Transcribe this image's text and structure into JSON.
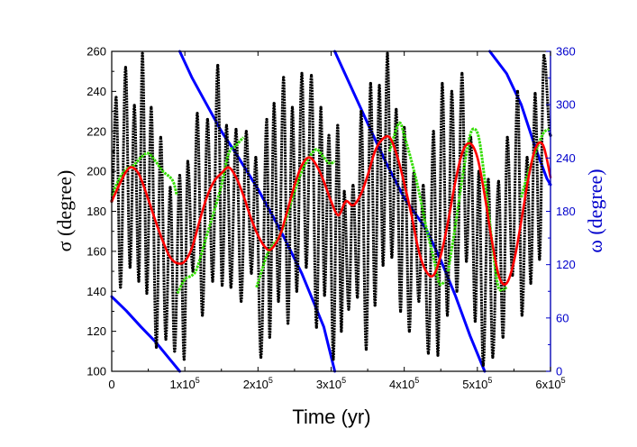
{
  "chart_data": {
    "type": "line",
    "title": "",
    "xlabel": "Time (yr)",
    "ylabel_left": "σ (degree)",
    "ylabel_right": "ω (degree)",
    "xlim": [
      0,
      600000
    ],
    "ylim_left": [
      100,
      260
    ],
    "ylim_right": [
      0,
      360
    ],
    "x_ticks": [
      {
        "value": 0,
        "mantissa": "0",
        "exponent": ""
      },
      {
        "value": 100000,
        "mantissa": "1x10",
        "exponent": "5"
      },
      {
        "value": 200000,
        "mantissa": "2x10",
        "exponent": "5"
      },
      {
        "value": 300000,
        "mantissa": "3x10",
        "exponent": "5"
      },
      {
        "value": 400000,
        "mantissa": "4x10",
        "exponent": "5"
      },
      {
        "value": 500000,
        "mantissa": "5x10",
        "exponent": "5"
      },
      {
        "value": 600000,
        "mantissa": "6x10",
        "exponent": "5"
      }
    ],
    "y_left_ticks": [
      100,
      120,
      140,
      160,
      180,
      200,
      220,
      240,
      260
    ],
    "y_right_ticks": [
      0,
      60,
      120,
      180,
      240,
      300,
      360
    ],
    "colors": {
      "sigma": "#000000",
      "omega": "#0000ff",
      "smooth": "#ff0000",
      "green": "#33dd00",
      "left_axis": "#000000",
      "right_axis": "#0000cc"
    },
    "series": [
      {
        "name": "sigma",
        "axis": "left",
        "style": "dots",
        "peaks": [
          [
            6000,
            237
          ],
          [
            19000,
            252
          ],
          [
            31000,
            233
          ],
          [
            42000,
            259
          ],
          [
            54000,
            232
          ],
          [
            67000,
            217
          ],
          [
            80000,
            192
          ],
          [
            93000,
            198
          ],
          [
            104000,
            205
          ],
          [
            117000,
            229
          ],
          [
            131000,
            226
          ],
          [
            145000,
            253
          ],
          [
            157000,
            223
          ],
          [
            170000,
            221
          ],
          [
            184000,
            220
          ],
          [
            197000,
            207
          ],
          [
            212000,
            226
          ],
          [
            222000,
            234
          ],
          [
            235000,
            247
          ],
          [
            247000,
            232
          ],
          [
            260000,
            249
          ],
          [
            273000,
            248
          ],
          [
            286000,
            232
          ],
          [
            297000,
            218
          ],
          [
            309000,
            223
          ],
          [
            318000,
            190
          ],
          [
            330000,
            193
          ],
          [
            341000,
            230
          ],
          [
            354000,
            244
          ],
          [
            366000,
            243
          ],
          [
            377000,
            259
          ],
          [
            389000,
            231
          ],
          [
            400000,
            222
          ],
          [
            413000,
            199
          ],
          [
            426000,
            193
          ],
          [
            440000,
            220
          ],
          [
            452000,
            244
          ],
          [
            465000,
            240
          ],
          [
            479000,
            249
          ],
          [
            491000,
            217
          ],
          [
            502000,
            200
          ],
          [
            515000,
            196
          ],
          [
            529000,
            195
          ],
          [
            541000,
            217
          ],
          [
            555000,
            240
          ],
          [
            568000,
            207
          ],
          [
            579000,
            239
          ],
          [
            591000,
            258
          ]
        ],
        "troughs": [
          [
            0,
            185
          ],
          [
            12000,
            142
          ],
          [
            25000,
            152
          ],
          [
            37000,
            145
          ],
          [
            48000,
            139
          ],
          [
            61000,
            112
          ],
          [
            74000,
            116
          ],
          [
            86000,
            110
          ],
          [
            99000,
            106
          ],
          [
            111000,
            150
          ],
          [
            124000,
            128
          ],
          [
            138000,
            145
          ],
          [
            151000,
            143
          ],
          [
            163000,
            142
          ],
          [
            177000,
            135
          ],
          [
            191000,
            149
          ],
          [
            204000,
            107
          ],
          [
            216000,
            117
          ],
          [
            228000,
            135
          ],
          [
            241000,
            124
          ],
          [
            253000,
            140
          ],
          [
            266000,
            152
          ],
          [
            280000,
            122
          ],
          [
            291000,
            138
          ],
          [
            303000,
            106
          ],
          [
            314000,
            120
          ],
          [
            324000,
            131
          ],
          [
            336000,
            137
          ],
          [
            348000,
            111
          ],
          [
            360000,
            133
          ],
          [
            371000,
            153
          ],
          [
            383000,
            157
          ],
          [
            395000,
            130
          ],
          [
            407000,
            120
          ],
          [
            420000,
            135
          ],
          [
            433000,
            109
          ],
          [
            446000,
            108
          ],
          [
            459000,
            128
          ],
          [
            472000,
            140
          ],
          [
            485000,
            155
          ],
          [
            497000,
            125
          ],
          [
            508000,
            103
          ],
          [
            521000,
            107
          ],
          [
            535000,
            117
          ],
          [
            548000,
            148
          ],
          [
            561000,
            128
          ],
          [
            573000,
            144
          ],
          [
            585000,
            156
          ],
          [
            600000,
            218
          ]
        ]
      },
      {
        "name": "omega",
        "axis": "right",
        "style": "line",
        "segments": [
          [
            [
              0,
              84
            ],
            [
              20000,
              68
            ],
            [
              40000,
              50
            ],
            [
              60000,
              33
            ],
            [
              80000,
              13
            ],
            [
              93000,
              0
            ]
          ],
          [
            [
              93000,
              360
            ],
            [
              110000,
              330
            ],
            [
              130000,
              300
            ],
            [
              150000,
              270
            ],
            [
              170000,
              245
            ],
            [
              200000,
              205
            ],
            [
              230000,
              160
            ],
            [
              260000,
              110
            ],
            [
              290000,
              50
            ],
            [
              305000,
              0
            ]
          ],
          [
            [
              305000,
              360
            ],
            [
              330000,
              315
            ],
            [
              355000,
              270
            ],
            [
              375000,
              235
            ],
            [
              400000,
              195
            ],
            [
              430000,
              160
            ],
            [
              450000,
              125
            ],
            [
              470000,
              85
            ],
            [
              490000,
              40
            ],
            [
              510000,
              0
            ]
          ],
          [
            [
              517000,
              360
            ],
            [
              540000,
              335
            ],
            [
              560000,
              300
            ],
            [
              580000,
              250
            ],
            [
              595000,
              217
            ],
            [
              600000,
              210
            ]
          ]
        ]
      },
      {
        "name": "smooth",
        "axis": "left",
        "style": "line",
        "points": [
          [
            0,
            185
          ],
          [
            10000,
            193
          ],
          [
            20000,
            200
          ],
          [
            28000,
            202
          ],
          [
            38000,
            198
          ],
          [
            50000,
            186
          ],
          [
            60000,
            175
          ],
          [
            70000,
            165
          ],
          [
            80000,
            157
          ],
          [
            90000,
            154
          ],
          [
            100000,
            155
          ],
          [
            110000,
            162
          ],
          [
            120000,
            175
          ],
          [
            130000,
            187
          ],
          [
            140000,
            195
          ],
          [
            150000,
            199
          ],
          [
            160000,
            202
          ],
          [
            170000,
            197
          ],
          [
            180000,
            188
          ],
          [
            190000,
            177
          ],
          [
            200000,
            168
          ],
          [
            210000,
            162
          ],
          [
            218000,
            161
          ],
          [
            230000,
            168
          ],
          [
            240000,
            180
          ],
          [
            250000,
            193
          ],
          [
            260000,
            203
          ],
          [
            270000,
            207
          ],
          [
            280000,
            203
          ],
          [
            290000,
            195
          ],
          [
            300000,
            185
          ],
          [
            310000,
            178
          ],
          [
            320000,
            185
          ],
          [
            330000,
            183
          ],
          [
            340000,
            188
          ],
          [
            350000,
            198
          ],
          [
            360000,
            210
          ],
          [
            370000,
            216
          ],
          [
            380000,
            217
          ],
          [
            390000,
            208
          ],
          [
            400000,
            194
          ],
          [
            410000,
            178
          ],
          [
            420000,
            160
          ],
          [
            430000,
            150
          ],
          [
            440000,
            148
          ],
          [
            450000,
            158
          ],
          [
            460000,
            175
          ],
          [
            470000,
            195
          ],
          [
            480000,
            210
          ],
          [
            490000,
            214
          ],
          [
            500000,
            207
          ],
          [
            510000,
            188
          ],
          [
            520000,
            165
          ],
          [
            530000,
            147
          ],
          [
            540000,
            144
          ],
          [
            550000,
            155
          ],
          [
            560000,
            175
          ],
          [
            570000,
            197
          ],
          [
            580000,
            212
          ],
          [
            590000,
            213
          ],
          [
            600000,
            197
          ]
        ]
      },
      {
        "name": "green",
        "axis": "left",
        "style": "dots",
        "segments": [
          [
            [
              0,
              188
            ],
            [
              10000,
              196
            ],
            [
              20000,
              201
            ],
            [
              30000,
              203
            ],
            [
              40000,
              207
            ],
            [
              50000,
              209
            ],
            [
              60000,
              205
            ],
            [
              70000,
              200
            ],
            [
              80000,
              197
            ],
            [
              85000,
              194
            ],
            [
              89000,
              188
            ]
          ],
          [
            [
              90000,
              139
            ],
            [
              100000,
              146
            ],
            [
              110000,
              148
            ],
            [
              117000,
              152
            ],
            [
              130000,
              168
            ],
            [
              140000,
              180
            ],
            [
              150000,
              193
            ],
            [
              160000,
              209
            ],
            [
              170000,
              213
            ],
            [
              180000,
              217
            ]
          ],
          [
            [
              198000,
              142
            ],
            [
              205000,
              150
            ],
            [
              212000,
              158
            ],
            [
              220000,
              163
            ],
            [
              230000,
              168
            ],
            [
              240000,
              178
            ],
            [
              250000,
              190
            ],
            [
              260000,
              200
            ],
            [
              270000,
              207
            ],
            [
              280000,
              211
            ],
            [
              290000,
              207
            ],
            [
              298000,
              204
            ],
            [
              305000,
              205
            ]
          ],
          [
            [
              380000,
              210
            ],
            [
              390000,
              222
            ],
            [
              395000,
              224
            ],
            [
              400000,
              218
            ],
            [
              410000,
              205
            ],
            [
              420000,
              190
            ],
            [
              430000,
              172
            ],
            [
              440000,
              157
            ],
            [
              448000,
              144
            ],
            [
              455000,
              145
            ]
          ],
          [
            [
              460000,
              150
            ],
            [
              470000,
              173
            ],
            [
              480000,
              198
            ],
            [
              490000,
              218
            ],
            [
              497000,
              221
            ],
            [
              503000,
              215
            ],
            [
              510000,
              196
            ],
            [
              520000,
              165
            ],
            [
              528000,
              143
            ],
            [
              535000,
              141
            ],
            [
              540000,
              142
            ]
          ],
          [
            [
              560000,
              187
            ],
            [
              570000,
              200
            ],
            [
              580000,
              210
            ],
            [
              590000,
              219
            ],
            [
              598000,
              221
            ]
          ]
        ]
      }
    ]
  }
}
